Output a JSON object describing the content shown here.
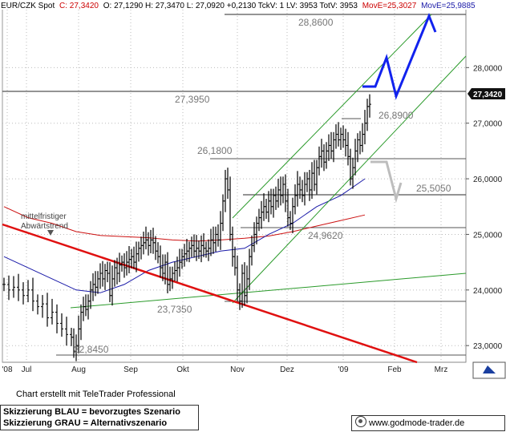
{
  "header": {
    "symbol": "EUR/CZK Spot",
    "close": "C: 27,3420",
    "ohlc": "O: 27,1290 H: 27,3470 L: 27,0920 +0,2130 TckV: 1 LV: 3953 TotV: 3953",
    "mov1": "MovE=25,3027",
    "mov2": "MovE=25,9885"
  },
  "colors": {
    "price": "#000000",
    "ma_fast": "#1a1aa8",
    "ma_slow": "#cc1111",
    "trend_red": "#e01010",
    "channel": "#2a9a2a",
    "scenario_blue": "#1122ee",
    "scenario_gray": "#bdbdbd",
    "hline": "#555555"
  },
  "chart_data": {
    "type": "line",
    "ylim": [
      22.7,
      29.1
    ],
    "yticks": [
      "23,0000",
      "24,0000",
      "25,0000",
      "26,0000",
      "27,0000",
      "28,0000"
    ],
    "x_labels": [
      "'08",
      "Jul",
      "Aug",
      "Sep",
      "Okt",
      "Nov",
      "Dez",
      "'09",
      "Feb",
      "Mrz"
    ],
    "last_price": "27,3420",
    "levels": [
      {
        "label": "28,8600",
        "value": 28.86
      },
      {
        "label": "27,3950",
        "value": 27.395
      },
      {
        "label": "26,8900",
        "value": 26.89
      },
      {
        "label": "26,1800",
        "value": 26.18
      },
      {
        "label": "25,5050",
        "value": 25.505
      },
      {
        "label": "24,9620",
        "value": 24.962
      },
      {
        "label": "23,7350",
        "value": 23.735
      },
      {
        "label": "22,8450",
        "value": 22.845
      }
    ],
    "annotation": "mittelfristiger Abwärtstrend",
    "price_path": [
      [
        0,
        24.1
      ],
      [
        2,
        24.0
      ],
      [
        4,
        24.05
      ],
      [
        6,
        24.0
      ],
      [
        8,
        23.9
      ],
      [
        10,
        24.0
      ],
      [
        12,
        23.8
      ],
      [
        14,
        23.7
      ],
      [
        16,
        23.75
      ],
      [
        18,
        23.5
      ],
      [
        20,
        23.6
      ],
      [
        22,
        23.4
      ],
      [
        24,
        23.3
      ],
      [
        26,
        23.2
      ],
      [
        28,
        23.15
      ],
      [
        29,
        22.9
      ],
      [
        30,
        23.0
      ],
      [
        31,
        23.3
      ],
      [
        32,
        23.6
      ],
      [
        33,
        23.7
      ],
      [
        34,
        23.65
      ],
      [
        35,
        23.8
      ],
      [
        36,
        24.0
      ],
      [
        37,
        24.1
      ],
      [
        38,
        24.05
      ],
      [
        39,
        24.2
      ],
      [
        40,
        24.3
      ],
      [
        41,
        24.2
      ],
      [
        42,
        24.35
      ],
      [
        43,
        24.3
      ],
      [
        44,
        23.9
      ],
      [
        45,
        24.2
      ],
      [
        46,
        24.4
      ],
      [
        47,
        24.3
      ],
      [
        48,
        24.45
      ],
      [
        49,
        24.5
      ],
      [
        50,
        24.4
      ],
      [
        51,
        24.5
      ],
      [
        52,
        24.55
      ],
      [
        53,
        24.6
      ],
      [
        54,
        24.5
      ],
      [
        55,
        24.65
      ],
      [
        56,
        24.75
      ],
      [
        57,
        24.8
      ],
      [
        58,
        24.85
      ],
      [
        59,
        24.9
      ],
      [
        60,
        24.8
      ],
      [
        61,
        24.9
      ],
      [
        62,
        24.85
      ],
      [
        63,
        24.7
      ],
      [
        64,
        24.6
      ],
      [
        65,
        24.4
      ],
      [
        66,
        24.3
      ],
      [
        67,
        24.5
      ],
      [
        68,
        24.1
      ],
      [
        69,
        24.2
      ],
      [
        70,
        24.3
      ],
      [
        71,
        24.35
      ],
      [
        72,
        24.4
      ],
      [
        73,
        24.5
      ],
      [
        74,
        24.6
      ],
      [
        75,
        24.65
      ],
      [
        76,
        24.7
      ],
      [
        77,
        24.75
      ],
      [
        78,
        24.8
      ],
      [
        79,
        24.7
      ],
      [
        80,
        24.75
      ],
      [
        81,
        24.7
      ],
      [
        82,
        24.8
      ],
      [
        83,
        24.75
      ],
      [
        84,
        24.7
      ],
      [
        85,
        24.75
      ],
      [
        86,
        24.9
      ],
      [
        87,
        24.85
      ],
      [
        88,
        25.0
      ],
      [
        89,
        24.9
      ],
      [
        90,
        25.2
      ],
      [
        91,
        25.6
      ],
      [
        92,
        26.0
      ],
      [
        93,
        25.8
      ],
      [
        94,
        25.0
      ],
      [
        95,
        24.6
      ],
      [
        96,
        24.4
      ],
      [
        97,
        24.0
      ],
      [
        98,
        23.8
      ],
      [
        99,
        24.3
      ],
      [
        100,
        23.9
      ],
      [
        101,
        24.2
      ],
      [
        102,
        24.6
      ],
      [
        103,
        24.8
      ],
      [
        104,
        25.0
      ],
      [
        105,
        25.2
      ],
      [
        106,
        25.3
      ],
      [
        107,
        25.4
      ],
      [
        108,
        25.5
      ],
      [
        109,
        25.4
      ],
      [
        110,
        25.6
      ],
      [
        111,
        25.5
      ],
      [
        112,
        25.7
      ],
      [
        113,
        25.6
      ],
      [
        114,
        25.8
      ],
      [
        115,
        25.7
      ],
      [
        116,
        25.9
      ],
      [
        117,
        25.6
      ],
      [
        118,
        25.3
      ],
      [
        119,
        25.2
      ],
      [
        120,
        25.5
      ],
      [
        121,
        25.7
      ],
      [
        122,
        25.9
      ],
      [
        123,
        25.8
      ],
      [
        124,
        25.7
      ],
      [
        125,
        25.9
      ],
      [
        126,
        26.0
      ],
      [
        127,
        25.8
      ],
      [
        128,
        26.1
      ],
      [
        129,
        25.9
      ],
      [
        130,
        26.2
      ],
      [
        131,
        26.4
      ],
      [
        132,
        26.5
      ],
      [
        133,
        26.3
      ],
      [
        134,
        26.5
      ],
      [
        135,
        26.6
      ],
      [
        136,
        26.5
      ],
      [
        137,
        26.7
      ],
      [
        138,
        26.8
      ],
      [
        139,
        26.7
      ],
      [
        140,
        26.8
      ],
      [
        141,
        26.7
      ],
      [
        142,
        26.6
      ],
      [
        143,
        26.4
      ],
      [
        144,
        26.0
      ],
      [
        145,
        26.2
      ],
      [
        146,
        26.5
      ],
      [
        147,
        26.7
      ],
      [
        148,
        26.6
      ],
      [
        149,
        26.8
      ],
      [
        150,
        27.0
      ],
      [
        151,
        27.3
      ],
      [
        152,
        27.34
      ]
    ],
    "ma_fast_path": [
      [
        0,
        24.6
      ],
      [
        10,
        24.4
      ],
      [
        20,
        24.2
      ],
      [
        30,
        24.0
      ],
      [
        40,
        23.95
      ],
      [
        50,
        24.1
      ],
      [
        60,
        24.35
      ],
      [
        70,
        24.5
      ],
      [
        80,
        24.6
      ],
      [
        90,
        24.7
      ],
      [
        100,
        24.75
      ],
      [
        110,
        25.0
      ],
      [
        120,
        25.2
      ],
      [
        130,
        25.5
      ],
      [
        140,
        25.7
      ],
      [
        150,
        26.0
      ]
    ],
    "ma_slow_path": [
      [
        0,
        25.5
      ],
      [
        10,
        25.3
      ],
      [
        20,
        25.2
      ],
      [
        30,
        25.05
      ],
      [
        40,
        24.98
      ],
      [
        50,
        24.96
      ],
      [
        60,
        24.94
      ],
      [
        70,
        24.9
      ],
      [
        80,
        24.88
      ],
      [
        90,
        24.9
      ],
      [
        100,
        24.93
      ],
      [
        110,
        24.97
      ],
      [
        120,
        25.05
      ],
      [
        130,
        25.15
      ],
      [
        140,
        25.25
      ],
      [
        150,
        25.35
      ]
    ]
  },
  "footer": {
    "credit": "Chart erstellt mit TeleTrader Professional",
    "scenario_blue": "Skizzierung BLAU = bevorzugtes Szenario",
    "scenario_gray": "Skizzierung GRAU = Alternativszenario",
    "website": "www.godmode-trader.de"
  }
}
